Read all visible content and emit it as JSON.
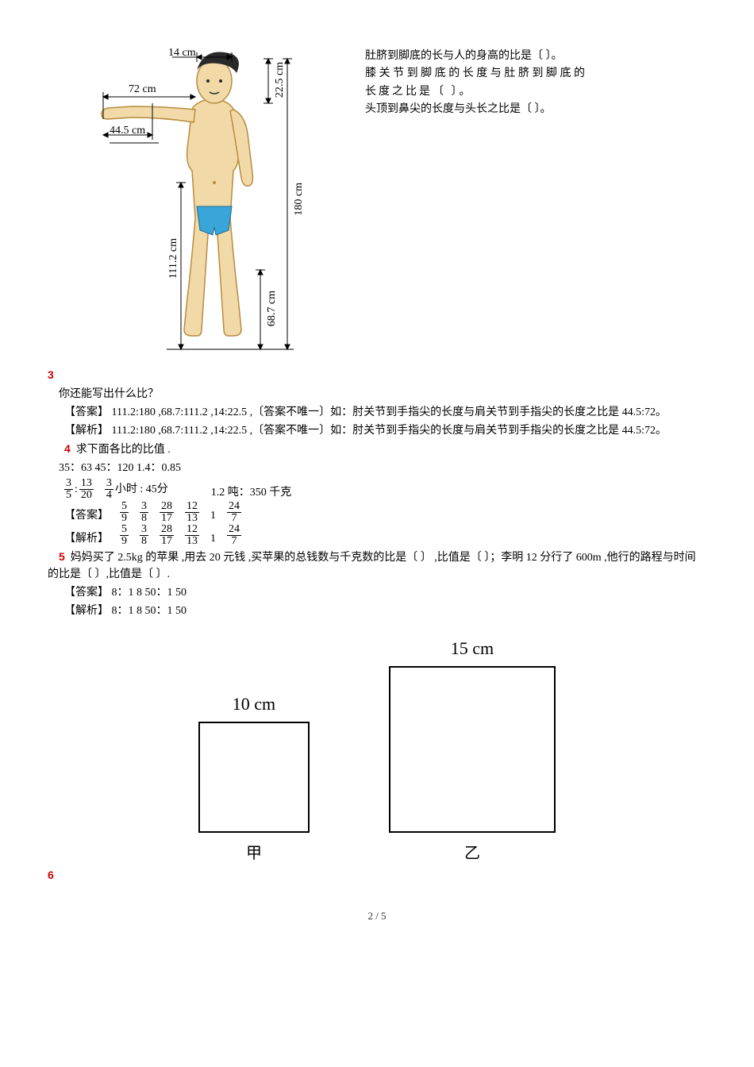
{
  "diagram": {
    "labels": {
      "head_w": "14 cm",
      "head_h": "22.5 cm",
      "arm": "72 cm",
      "forearm": "44.5 cm",
      "total_h": "180 cm",
      "navel_down": "111.2 cm",
      "knee_down": "68.7 cm"
    },
    "colors": {
      "skin": "#f2d9a8",
      "skin_stroke": "#b88c3f",
      "hair": "#2a2a2a",
      "shorts": "#3aa5d8",
      "arrow": "#000000"
    }
  },
  "side": {
    "l1": "肚脐到脚底的长与人的身高的比是〔 〕。",
    "l2": "膝关节到脚底的长度与肚脐到脚底的长度之比是〔 〕。",
    "l3": "头顶到鼻尖的长度与头长之比是〔 〕。"
  },
  "q3": {
    "num": "3",
    "line1": "你还能写出什么比？",
    "ans": "【答案】 111.2:180 ,68.7:111.2 ,14:22.5 ,〔答案不唯一〕如：肘关节到手指尖的长度与肩关节到手指尖的长度之比是 44.5:72。",
    "exp": "【解析】 111.2:180 ,68.7:111.2 ,14:22.5 ,〔答案不唯一〕如：肘关节到手指尖的长度与肩关节到手指尖的长度之比是 44.5:72。"
  },
  "q4": {
    "num": "4",
    "title": "求下面各比的比值 .",
    "row1": "35：63   45：120   1.4：0.85",
    "row2_mid": "小时 : 45分",
    "row2_tail": "1.2 吨：350 千克",
    "ans_label": "【答案】",
    "exp_label": "【解析】",
    "fracs": {
      "a": {
        "n": "3",
        "d": "5"
      },
      "b": {
        "n": "13",
        "d": "20"
      },
      "c": {
        "n": "3",
        "d": "4"
      },
      "r1": {
        "n": "5",
        "d": "9"
      },
      "r2": {
        "n": "3",
        "d": "8"
      },
      "r3": {
        "n": "28",
        "d": "17"
      },
      "r4": {
        "n": "12",
        "d": "13"
      },
      "r5_int": "1",
      "r6": {
        "n": "24",
        "d": "7"
      }
    }
  },
  "q5": {
    "num": "5",
    "text": "妈妈买了 2.5kg 的苹果 ,用去 20 元钱 ,买苹果的总钱数与千克数的比是〔    〕 ,比值是〔    〕；李明 12 分行了 600m ,他行的路程与时间的比是〔    〕,比值是〔    〕.",
    "ans": "【答案】 8：1 8 50：1 50",
    "exp": "【解析】 8：1 8 50：1 50"
  },
  "squares": {
    "a": {
      "top": "10 cm",
      "bot": "甲",
      "size": 140
    },
    "b": {
      "top": "15 cm",
      "bot": "乙",
      "size": 210
    }
  },
  "q6": {
    "num": "6"
  },
  "footer": "2 / 5"
}
